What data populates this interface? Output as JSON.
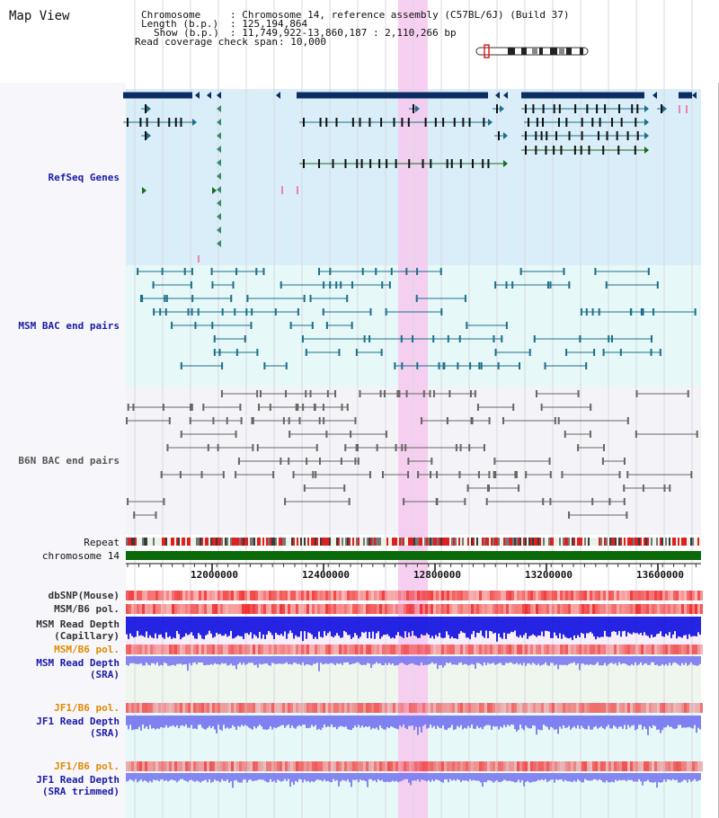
{
  "app": {
    "title": "Map View"
  },
  "header": {
    "chromosome_label": "Chromosome",
    "chromosome_value": ": Chromosome 14, reference assembly (C57BL/6J) (Build 37)",
    "length_label": "Length (b.p.)",
    "length_value": ": 125,194,864",
    "show_label": "Show (b.p.)",
    "show_value": ": 11,749,922-13,860,187 : 2,110,266 bp",
    "coverage_label": "Read coverage check span",
    "coverage_value": ": 10,000"
  },
  "tracks": {
    "refseq": "RefSeq Genes",
    "msm_bac": "MSM BAC end pairs",
    "b6n_bac": "B6N BAC end pairs",
    "repeat": "Repeat",
    "chromosome": "chromosome 14",
    "dbsnp": "dbSNP(Mouse)",
    "msm_b6_pol": "MSM/B6 pol.",
    "msm_read_depth_cap_1": "MSM Read Depth",
    "msm_read_depth_cap_2": "(Capillary)",
    "msm_b6_pol_2": "MSM/B6 pol.",
    "msm_read_depth_sra_1": "MSM Read Depth",
    "msm_read_depth_sra_2": "(SRA)",
    "jf1_b6_pol": "JF1/B6 pol.",
    "jf1_read_depth_1": "JF1 Read Depth",
    "jf1_read_depth_2": "(SRA)",
    "jf1_b6_pol_2": "JF1/B6 pol.",
    "jf1_trim_1": "JF1 Read Depth",
    "jf1_trim_2": "(SRA trimmed)"
  },
  "axis": {
    "ticks": [
      "12000000",
      "12400000",
      "12800000",
      "13200000",
      "13600000"
    ]
  },
  "colors": {
    "gene_dark": "#0c2c64",
    "gene_teal": "#1d6f8a",
    "gene_green": "#1b6b1b",
    "refseq_bg": "#d9eef8",
    "msm_bg": "#e6f8f8",
    "b6n_bg": "#f4f4f8",
    "highlight": "#f6c8ee",
    "chromosome_bar": "#0a6a0a",
    "read_depth": "#1818e0",
    "read_depth_light": "#7a7af0",
    "pol_red": "#f04848",
    "label_blue": "#1a1aa8",
    "label_orange": "#e08a00"
  }
}
